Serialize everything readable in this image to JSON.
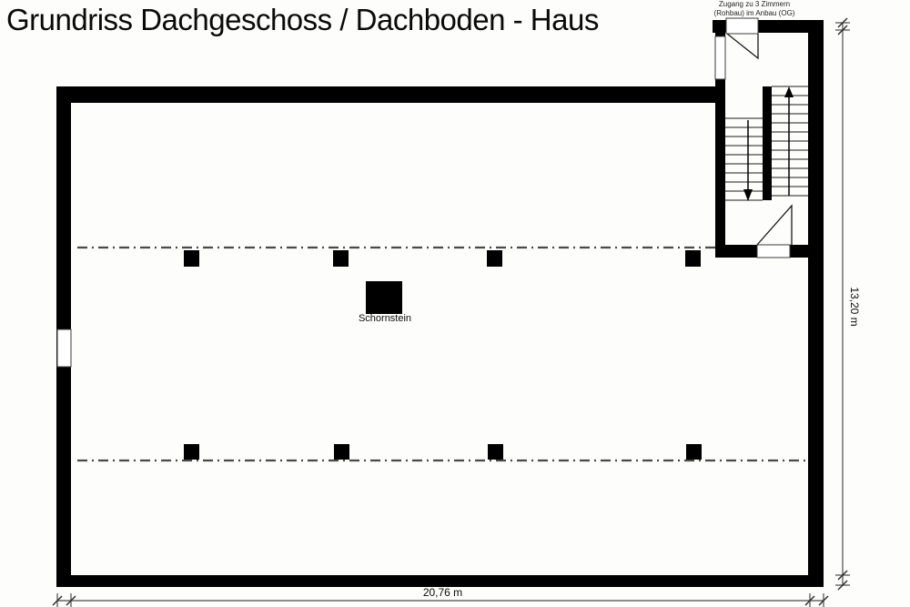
{
  "plan": {
    "title": "Grundriss Dachgeschoss / Dachboden - Haus",
    "annex_note": {
      "line1": "Zugang zu 3 Zimmern",
      "line2": "(Rohbau) im Anbau (OG)"
    },
    "labels": {
      "chimney": "Schornstein"
    },
    "dimensions": {
      "width": "20,76 m",
      "height": "13,20 m"
    },
    "colors": {
      "wall": "#000000",
      "line": "#4a4a4a",
      "background": "#fdfdfb"
    }
  }
}
